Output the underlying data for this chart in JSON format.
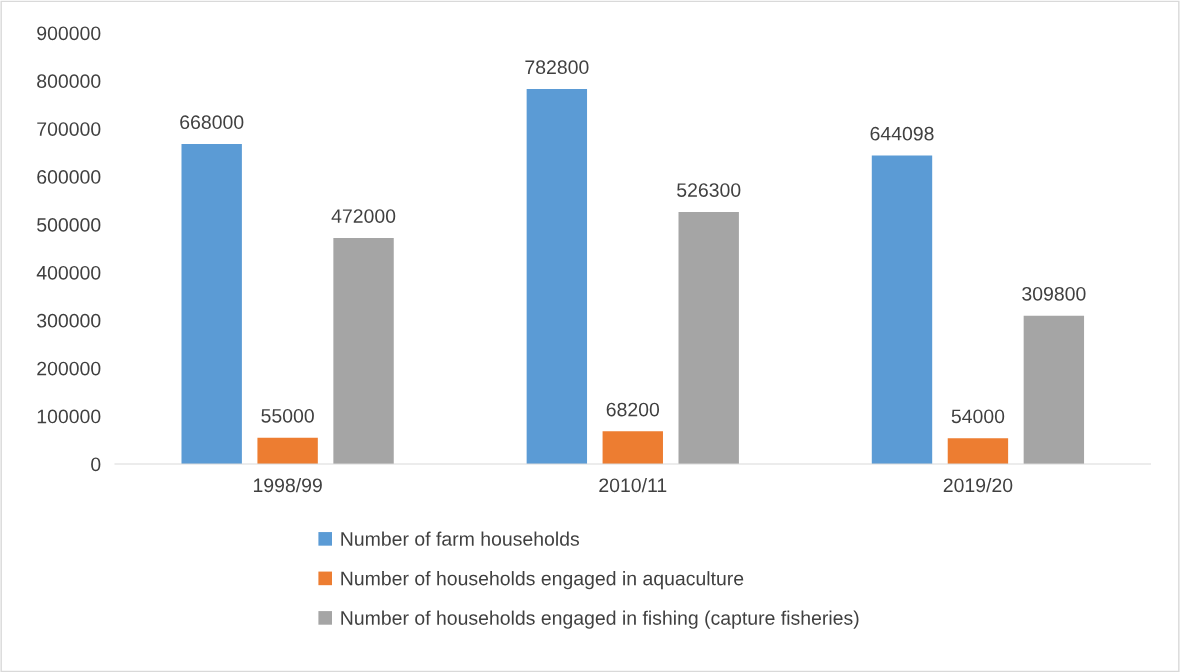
{
  "chart_data": {
    "type": "bar",
    "categories": [
      "1998/99",
      "2010/11",
      "2019/20"
    ],
    "series": [
      {
        "name": "Number of farm households",
        "color": "#5b9bd5",
        "values": [
          668000,
          782800,
          644098
        ]
      },
      {
        "name": "Number of households engaged in aquaculture",
        "color": "#ed7d31",
        "values": [
          55000,
          68200,
          54000
        ]
      },
      {
        "name": "Number of households engaged in fishing (capture fisheries)",
        "color": "#a5a5a5",
        "values": [
          472000,
          526300,
          309800
        ]
      }
    ],
    "ylim": [
      0,
      900000
    ],
    "yticks": [
      0,
      100000,
      200000,
      300000,
      400000,
      500000,
      600000,
      700000,
      800000,
      900000
    ],
    "data_labels": true,
    "grid": false,
    "legend": "bottom"
  }
}
